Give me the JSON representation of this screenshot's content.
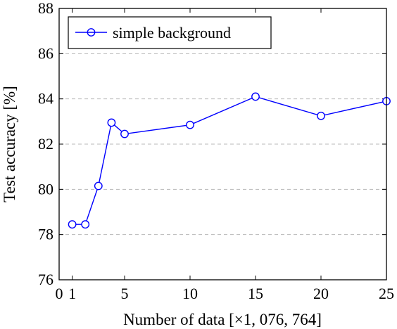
{
  "chart_data": {
    "type": "line",
    "title": "",
    "xlabel": "Number of data [×1, 076, 764]",
    "ylabel": "Test accuracy [%]",
    "xlim": [
      0,
      25
    ],
    "ylim": [
      76,
      88
    ],
    "x_ticks": [
      "0",
      "1",
      "5",
      "10",
      "15",
      "20",
      "25"
    ],
    "y_ticks": [
      "76",
      "78",
      "80",
      "82",
      "84",
      "86",
      "88"
    ],
    "grid": "horizontal dashed",
    "legend_position": "top-left",
    "series": [
      {
        "name": "simple background",
        "color": "#0000ff",
        "marker": "open-circle",
        "x": [
          1,
          2,
          3,
          4,
          5,
          10,
          15,
          20,
          25
        ],
        "y": [
          78.45,
          78.45,
          80.15,
          82.95,
          82.45,
          82.85,
          84.1,
          83.25,
          83.9
        ]
      }
    ]
  }
}
